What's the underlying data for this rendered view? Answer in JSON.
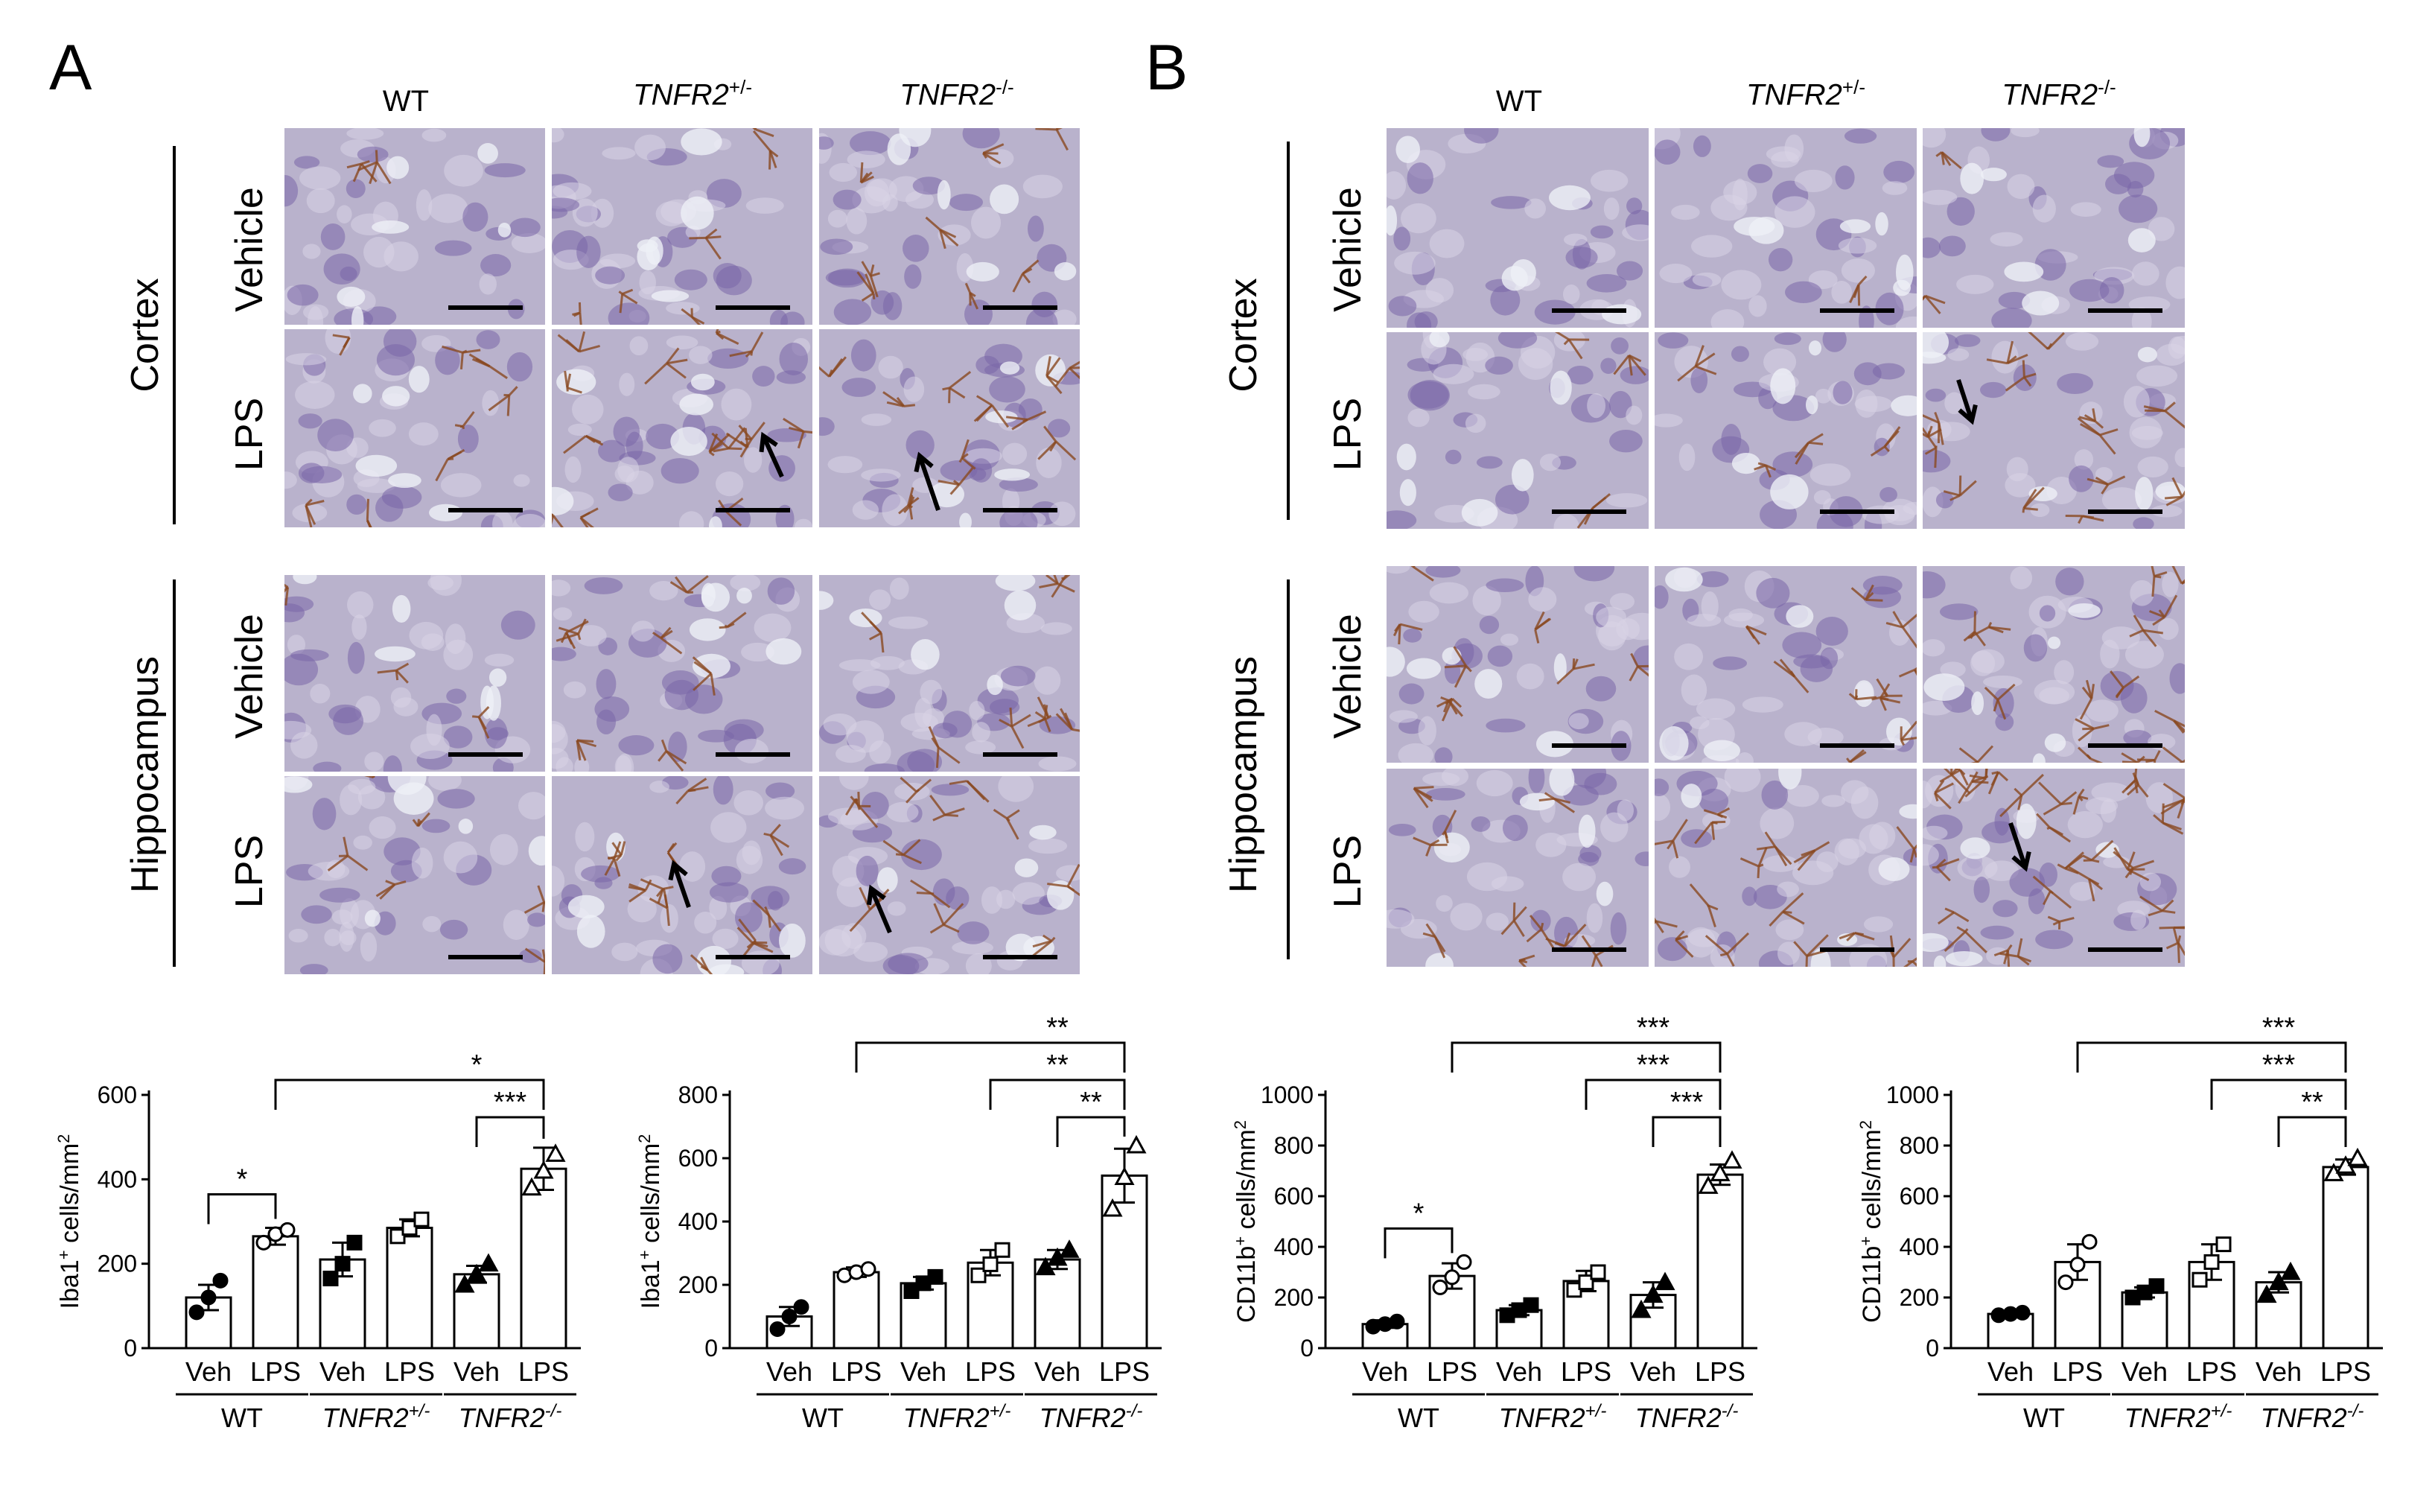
{
  "panels": {
    "A": {
      "letter": "A",
      "columns": [
        "WT",
        "TNFR2",
        "TNFR2"
      ],
      "column_sups": [
        "",
        "+/-",
        "-/-"
      ],
      "regions": [
        "Cortex",
        "Hippocampus"
      ],
      "rows": [
        "Vehicle",
        "LPS",
        "Vehicle",
        "LPS"
      ]
    },
    "B": {
      "letter": "B",
      "columns": [
        "WT",
        "TNFR2",
        "TNFR2"
      ],
      "column_sups": [
        "",
        "+/-",
        "-/-"
      ],
      "regions": [
        "Cortex",
        "Hippocampus"
      ],
      "rows": [
        "Vehicle",
        "LPS",
        "Vehicle",
        "LPS"
      ]
    }
  },
  "colors": {
    "tissue_base": "#b9b2cc",
    "nuclei": "#7a66a8",
    "stain_brown": "#8a4a22",
    "scale_bar": "#000000"
  },
  "chart_data": [
    {
      "type": "bar",
      "ylabel": "Iba1+ cells/mm2",
      "ylabel_main": "Iba1",
      "ylabel_sup": "+",
      "ylabel_rest": " cells/mm",
      "ylabel_sup2": "2",
      "ylim": [
        0,
        600
      ],
      "yticks": [
        0,
        200,
        400,
        600
      ],
      "categories": [
        "Veh",
        "LPS",
        "Veh",
        "LPS",
        "Veh",
        "LPS"
      ],
      "groups": [
        "WT",
        "TNFR2",
        "TNFR2"
      ],
      "group_sups": [
        "",
        "+/-",
        "-/-"
      ],
      "values": [
        120,
        265,
        210,
        285,
        175,
        425
      ],
      "errors": [
        30,
        20,
        40,
        20,
        20,
        50
      ],
      "points": [
        [
          85,
          120,
          160
        ],
        [
          250,
          270,
          280
        ],
        [
          165,
          200,
          250
        ],
        [
          265,
          285,
          305
        ],
        [
          150,
          175,
          200
        ],
        [
          380,
          420,
          460
        ]
      ],
      "markers": [
        "circle-filled",
        "circle-open",
        "square-filled",
        "square-open",
        "triangle-filled",
        "triangle-open"
      ],
      "significance": [
        {
          "from": 0,
          "to": 1,
          "label": "*"
        },
        {
          "from": 1,
          "to": 5,
          "label": "*"
        },
        {
          "from": 4,
          "to": 5,
          "label": "***"
        }
      ]
    },
    {
      "type": "bar",
      "ylabel": "Iba1+ cells/mm2",
      "ylabel_main": "Iba1",
      "ylabel_sup": "+",
      "ylabel_rest": " cells/mm",
      "ylabel_sup2": "2",
      "ylim": [
        0,
        800
      ],
      "yticks": [
        0,
        200,
        400,
        600,
        800
      ],
      "categories": [
        "Veh",
        "LPS",
        "Veh",
        "LPS",
        "Veh",
        "LPS"
      ],
      "groups": [
        "WT",
        "TNFR2",
        "TNFR2"
      ],
      "group_sups": [
        "",
        "+/-",
        "-/-"
      ],
      "values": [
        100,
        240,
        205,
        270,
        280,
        545
      ],
      "errors": [
        30,
        15,
        20,
        40,
        30,
        85
      ],
      "points": [
        [
          60,
          100,
          130
        ],
        [
          230,
          240,
          250
        ],
        [
          180,
          205,
          225
        ],
        [
          230,
          265,
          310
        ],
        [
          255,
          285,
          310
        ],
        [
          440,
          540,
          640
        ]
      ],
      "markers": [
        "circle-filled",
        "circle-open",
        "square-filled",
        "square-open",
        "triangle-filled",
        "triangle-open"
      ],
      "significance": [
        {
          "from": 1,
          "to": 5,
          "label": "**"
        },
        {
          "from": 3,
          "to": 5,
          "label": "**"
        },
        {
          "from": 4,
          "to": 5,
          "label": "**"
        }
      ]
    },
    {
      "type": "bar",
      "ylabel": "CD11b+ cells/mm2",
      "ylabel_main": "CD11b",
      "ylabel_sup": "+",
      "ylabel_rest": " cells/mm",
      "ylabel_sup2": "2",
      "ylim": [
        0,
        1000
      ],
      "yticks": [
        0,
        200,
        400,
        600,
        800,
        1000
      ],
      "categories": [
        "Veh",
        "LPS",
        "Veh",
        "LPS",
        "Veh",
        "LPS"
      ],
      "groups": [
        "WT",
        "TNFR2",
        "TNFR2"
      ],
      "group_sups": [
        "",
        "+/-",
        "-/-"
      ],
      "values": [
        95,
        285,
        150,
        265,
        210,
        685
      ],
      "errors": [
        15,
        50,
        20,
        40,
        50,
        40
      ],
      "points": [
        [
          85,
          95,
          105
        ],
        [
          240,
          280,
          340
        ],
        [
          130,
          150,
          170
        ],
        [
          230,
          260,
          300
        ],
        [
          150,
          210,
          260
        ],
        [
          640,
          690,
          740
        ]
      ],
      "markers": [
        "circle-filled",
        "circle-open",
        "square-filled",
        "square-open",
        "triangle-filled",
        "triangle-open"
      ],
      "significance": [
        {
          "from": 0,
          "to": 1,
          "label": "*"
        },
        {
          "from": 1,
          "to": 5,
          "label": "***"
        },
        {
          "from": 3,
          "to": 5,
          "label": "***"
        },
        {
          "from": 4,
          "to": 5,
          "label": "***"
        }
      ]
    },
    {
      "type": "bar",
      "ylabel": "CD11b+ cells/mm2",
      "ylabel_main": "CD11b",
      "ylabel_sup": "+",
      "ylabel_rest": " cells/mm",
      "ylabel_sup2": "2",
      "ylim": [
        0,
        1000
      ],
      "yticks": [
        0,
        200,
        400,
        600,
        800,
        1000
      ],
      "categories": [
        "Veh",
        "LPS",
        "Veh",
        "LPS",
        "Veh",
        "LPS"
      ],
      "groups": [
        "WT",
        "TNFR2",
        "TNFR2"
      ],
      "group_sups": [
        "",
        "+/-",
        "-/-"
      ],
      "values": [
        135,
        340,
        220,
        340,
        260,
        715
      ],
      "errors": [
        5,
        70,
        20,
        70,
        40,
        30
      ],
      "points": [
        [
          130,
          135,
          140
        ],
        [
          260,
          330,
          420
        ],
        [
          200,
          220,
          245
        ],
        [
          270,
          340,
          410
        ],
        [
          210,
          260,
          300
        ],
        [
          690,
          720,
          750
        ]
      ],
      "markers": [
        "circle-filled",
        "circle-open",
        "square-filled",
        "square-open",
        "triangle-filled",
        "triangle-open"
      ],
      "significance": [
        {
          "from": 1,
          "to": 5,
          "label": "***"
        },
        {
          "from": 3,
          "to": 5,
          "label": "***"
        },
        {
          "from": 4,
          "to": 5,
          "label": "**"
        }
      ]
    }
  ]
}
